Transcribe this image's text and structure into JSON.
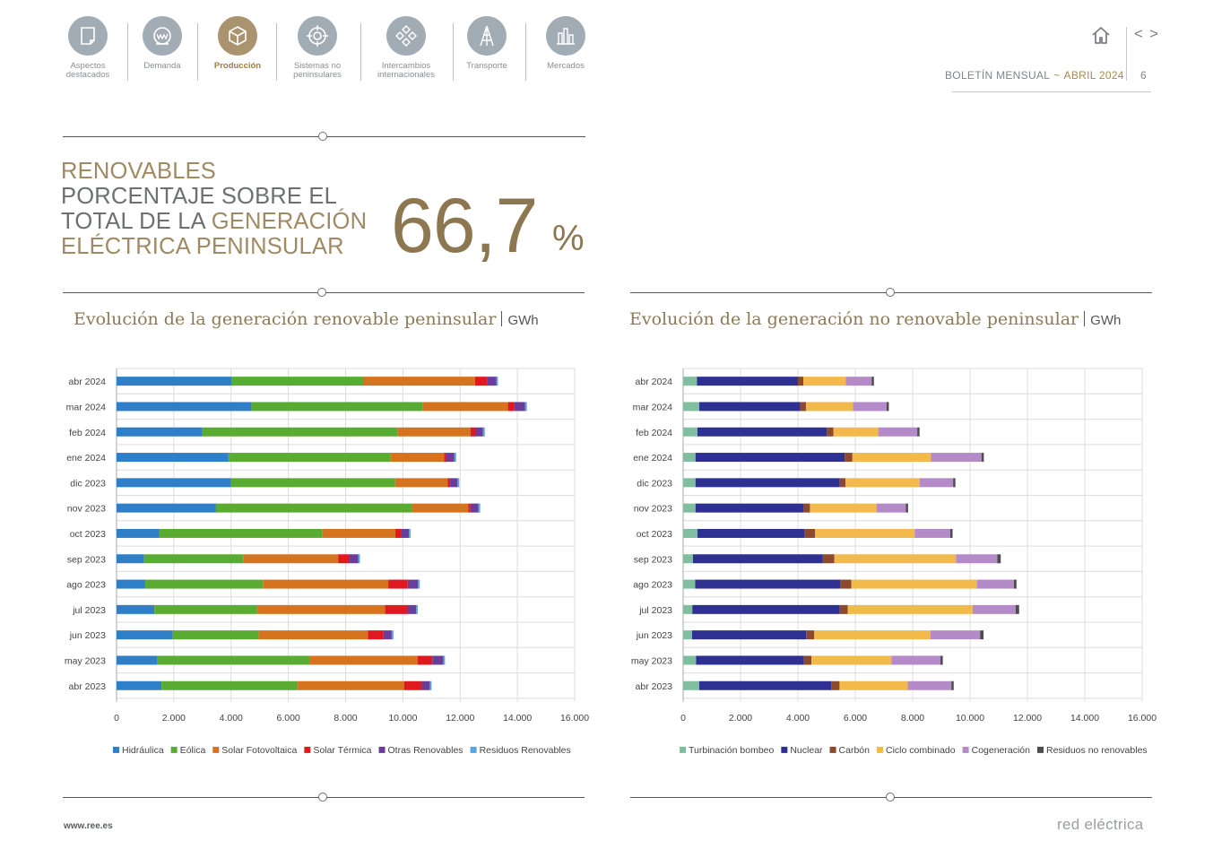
{
  "nav": {
    "items": [
      {
        "label": "Aspectos\ndestacados",
        "icon": "document-icon",
        "active": false
      },
      {
        "label": "Demanda",
        "icon": "meter-icon",
        "active": false
      },
      {
        "label": "Producción",
        "icon": "cube-icon",
        "active": true
      },
      {
        "label": "Sistemas no\npeninsulares",
        "icon": "target-icon",
        "active": false
      },
      {
        "label": "Intercambios\ninternacionales",
        "icon": "exchange-icon",
        "active": false
      },
      {
        "label": "Transporte",
        "icon": "tower-icon",
        "active": false
      },
      {
        "label": "Mercados",
        "icon": "market-icon",
        "active": false
      }
    ]
  },
  "header": {
    "bulletin": "BOLETÍN MENSUAL",
    "separator": "~",
    "month": "ABRIL 2024",
    "page": "6",
    "prev_label": "<",
    "next_label": ">"
  },
  "kpi": {
    "line1": "RENOVABLES",
    "line2": "PORCENTAJE SOBRE EL",
    "line3a": "TOTAL DE LA ",
    "line3b": "GENERACIÓN",
    "line4": "ELÉCTRICA PENINSULAR",
    "value": "66,7",
    "unit": "%"
  },
  "charts": {
    "left_title": "Evolución de la generación renovable peninsular",
    "right_title": "Evolución de la generación no renovable peninsular",
    "unit": "GWh"
  },
  "chart_data": [
    {
      "type": "bar",
      "orientation": "horizontal-stacked",
      "title": "Evolución de la generación renovable peninsular",
      "unit": "GWh",
      "categories": [
        "abr 2024",
        "mar 2024",
        "feb 2024",
        "ene 2024",
        "dic 2023",
        "nov 2023",
        "oct 2023",
        "sep 2023",
        "ago 2023",
        "jul 2023",
        "jun 2023",
        "may 2023",
        "abr 2023"
      ],
      "series": [
        {
          "name": "Hidráulica",
          "color": "#2f7fc8",
          "values": [
            4020,
            4710,
            3000,
            3910,
            3990,
            3460,
            1500,
            960,
            1000,
            1320,
            1960,
            1410,
            1570
          ]
        },
        {
          "name": "Eólica",
          "color": "#5aab32",
          "values": [
            4590,
            5990,
            6810,
            5660,
            5740,
            6860,
            5680,
            3480,
            4110,
            3590,
            3000,
            5320,
            4760
          ]
        },
        {
          "name": "Solar Fotovoltaica",
          "color": "#d6731f",
          "values": [
            3910,
            2970,
            2550,
            1870,
            1840,
            1970,
            2560,
            3300,
            4380,
            4470,
            3820,
            3780,
            3710
          ]
        },
        {
          "name": "Solar Térmica",
          "color": "#e0181f",
          "values": [
            430,
            220,
            180,
            80,
            80,
            70,
            200,
            400,
            680,
            780,
            540,
            520,
            620
          ]
        },
        {
          "name": "Otras Renovables",
          "color": "#6a3d9a",
          "values": [
            310,
            380,
            260,
            280,
            260,
            280,
            270,
            300,
            360,
            300,
            290,
            380,
            280
          ]
        },
        {
          "name": "Residuos Renovables",
          "color": "#5aa3dc",
          "values": [
            60,
            60,
            60,
            60,
            60,
            60,
            60,
            60,
            60,
            60,
            60,
            60,
            60
          ]
        }
      ],
      "xlim": [
        0,
        16000
      ],
      "xticks": [
        "0",
        "2.000",
        "4.000",
        "6.000",
        "8.000",
        "10.000",
        "12.000",
        "14.000",
        "16.000"
      ]
    },
    {
      "type": "bar",
      "orientation": "horizontal-stacked",
      "title": "Evolución de la generación no renovable peninsular",
      "unit": "GWh",
      "categories": [
        "abr 2024",
        "mar 2024",
        "feb 2024",
        "ene 2024",
        "dic 2023",
        "nov 2023",
        "oct 2023",
        "sep 2023",
        "ago 2023",
        "jul 2023",
        "jun 2023",
        "may 2023",
        "abr 2023"
      ],
      "series": [
        {
          "name": "Turbinación bombeo",
          "color": "#7fbfa0",
          "values": [
            480,
            560,
            500,
            430,
            430,
            430,
            500,
            340,
            420,
            320,
            310,
            450,
            560
          ]
        },
        {
          "name": "Nuclear",
          "color": "#2e3192",
          "values": [
            3520,
            3520,
            4510,
            5200,
            5030,
            3770,
            3720,
            4530,
            5050,
            5140,
            3980,
            3760,
            4600
          ]
        },
        {
          "name": "Carbón",
          "color": "#8b4a2b",
          "values": [
            190,
            200,
            230,
            270,
            200,
            220,
            380,
            400,
            390,
            280,
            280,
            260,
            290
          ]
        },
        {
          "name": "Ciclo combinado",
          "color": "#f2b94b",
          "values": [
            1480,
            1640,
            1560,
            2740,
            2590,
            2320,
            3470,
            4240,
            4380,
            4350,
            4050,
            2790,
            2380
          ]
        },
        {
          "name": "Cogeneración",
          "color": "#b48ac9",
          "values": [
            900,
            1170,
            1360,
            1760,
            1160,
            1020,
            1240,
            1440,
            1290,
            1500,
            1730,
            1710,
            1520
          ]
        },
        {
          "name": "Residuos no renovables",
          "color": "#4d4d4d",
          "values": [
            80,
            80,
            80,
            80,
            80,
            80,
            80,
            120,
            90,
            120,
            120,
            80,
            80
          ]
        }
      ],
      "xlim": [
        0,
        16000
      ],
      "xticks": [
        "0",
        "2.000",
        "4.000",
        "6.000",
        "8.000",
        "10.000",
        "12.000",
        "14.000",
        "16.000"
      ]
    }
  ],
  "footer": {
    "url": "www.ree.es",
    "brand": "red eléctrica"
  }
}
